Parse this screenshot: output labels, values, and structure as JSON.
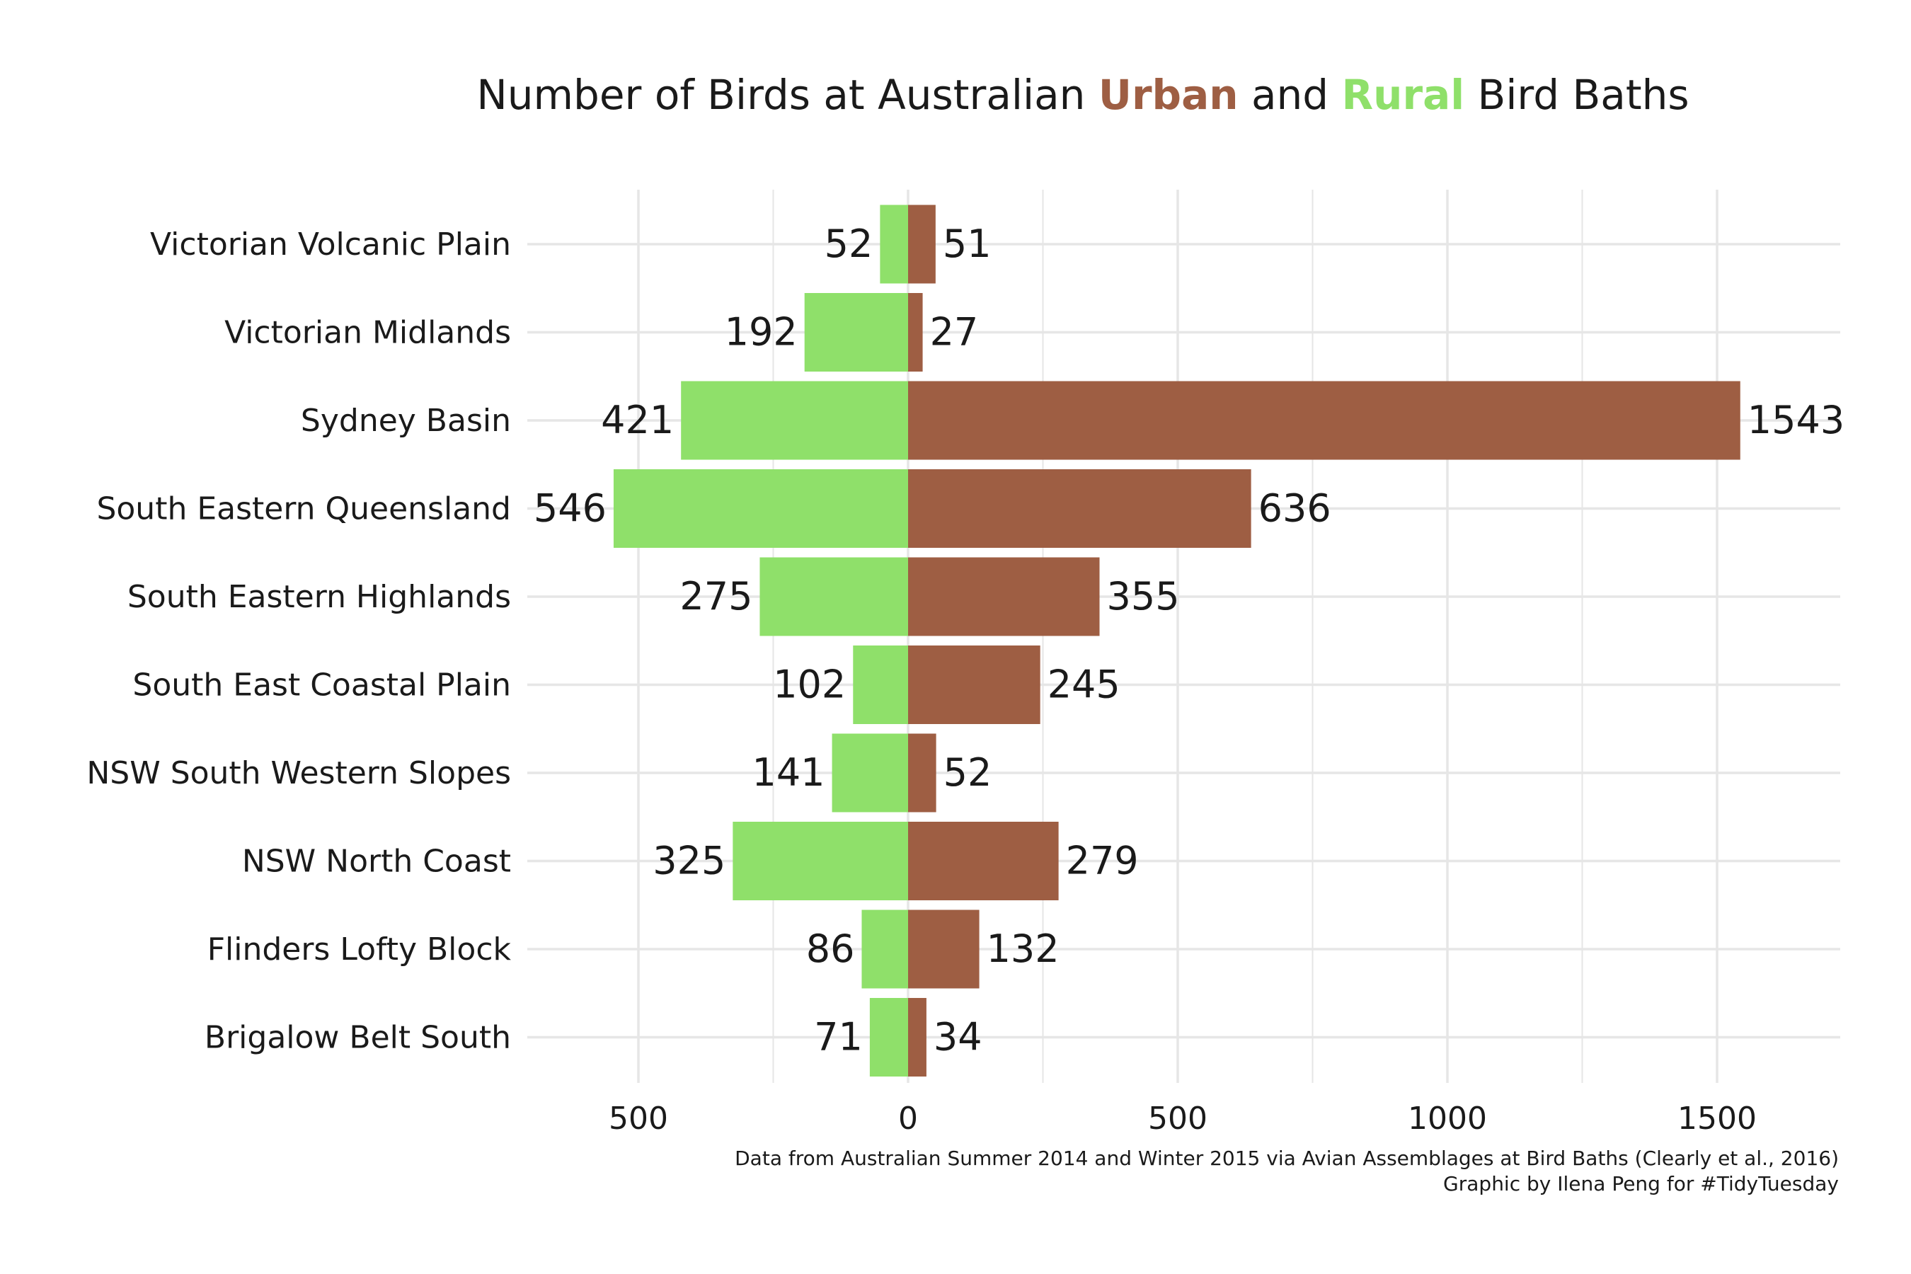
{
  "title": {
    "prefix": "Number of Birds at Australian ",
    "urban_word": "Urban",
    "middle": " and ",
    "rural_word": "Rural",
    "suffix": " Bird Baths"
  },
  "caption": {
    "line1": "Data from Australian Summer 2014 and Winter 2015 via Avian Assemblages at Bird Baths (Clearly et al., 2016)",
    "line2": "Graphic by Ilena Peng for #TidyTuesday"
  },
  "colors": {
    "urban": "#9e5e43",
    "rural": "#8fe06a",
    "grid": "#e6e6e6"
  },
  "chart_data": {
    "type": "bar",
    "orientation": "horizontal-diverging",
    "title": "Number of Birds at Australian Urban and Rural Bird Baths",
    "categories": [
      "Victorian Volcanic Plain",
      "Victorian Midlands",
      "Sydney Basin",
      "South Eastern Queensland",
      "South Eastern Highlands",
      "South East Coastal Plain",
      "NSW South Western Slopes",
      "NSW North Coast",
      "Flinders Lofty Block",
      "Brigalow Belt South"
    ],
    "series": [
      {
        "name": "Rural",
        "color": "#8fe06a",
        "direction": "left",
        "values": [
          52,
          192,
          421,
          546,
          275,
          102,
          141,
          325,
          86,
          71
        ]
      },
      {
        "name": "Urban",
        "color": "#9e5e43",
        "direction": "right",
        "values": [
          51,
          27,
          1543,
          636,
          355,
          245,
          52,
          279,
          132,
          34
        ]
      }
    ],
    "xlim": [
      -710,
      1735
    ],
    "xticks": [
      -500,
      0,
      500,
      1000,
      1500
    ],
    "xtick_labels": [
      "500",
      "0",
      "500",
      "1000",
      "1500"
    ],
    "grid": true,
    "legend": "none"
  }
}
